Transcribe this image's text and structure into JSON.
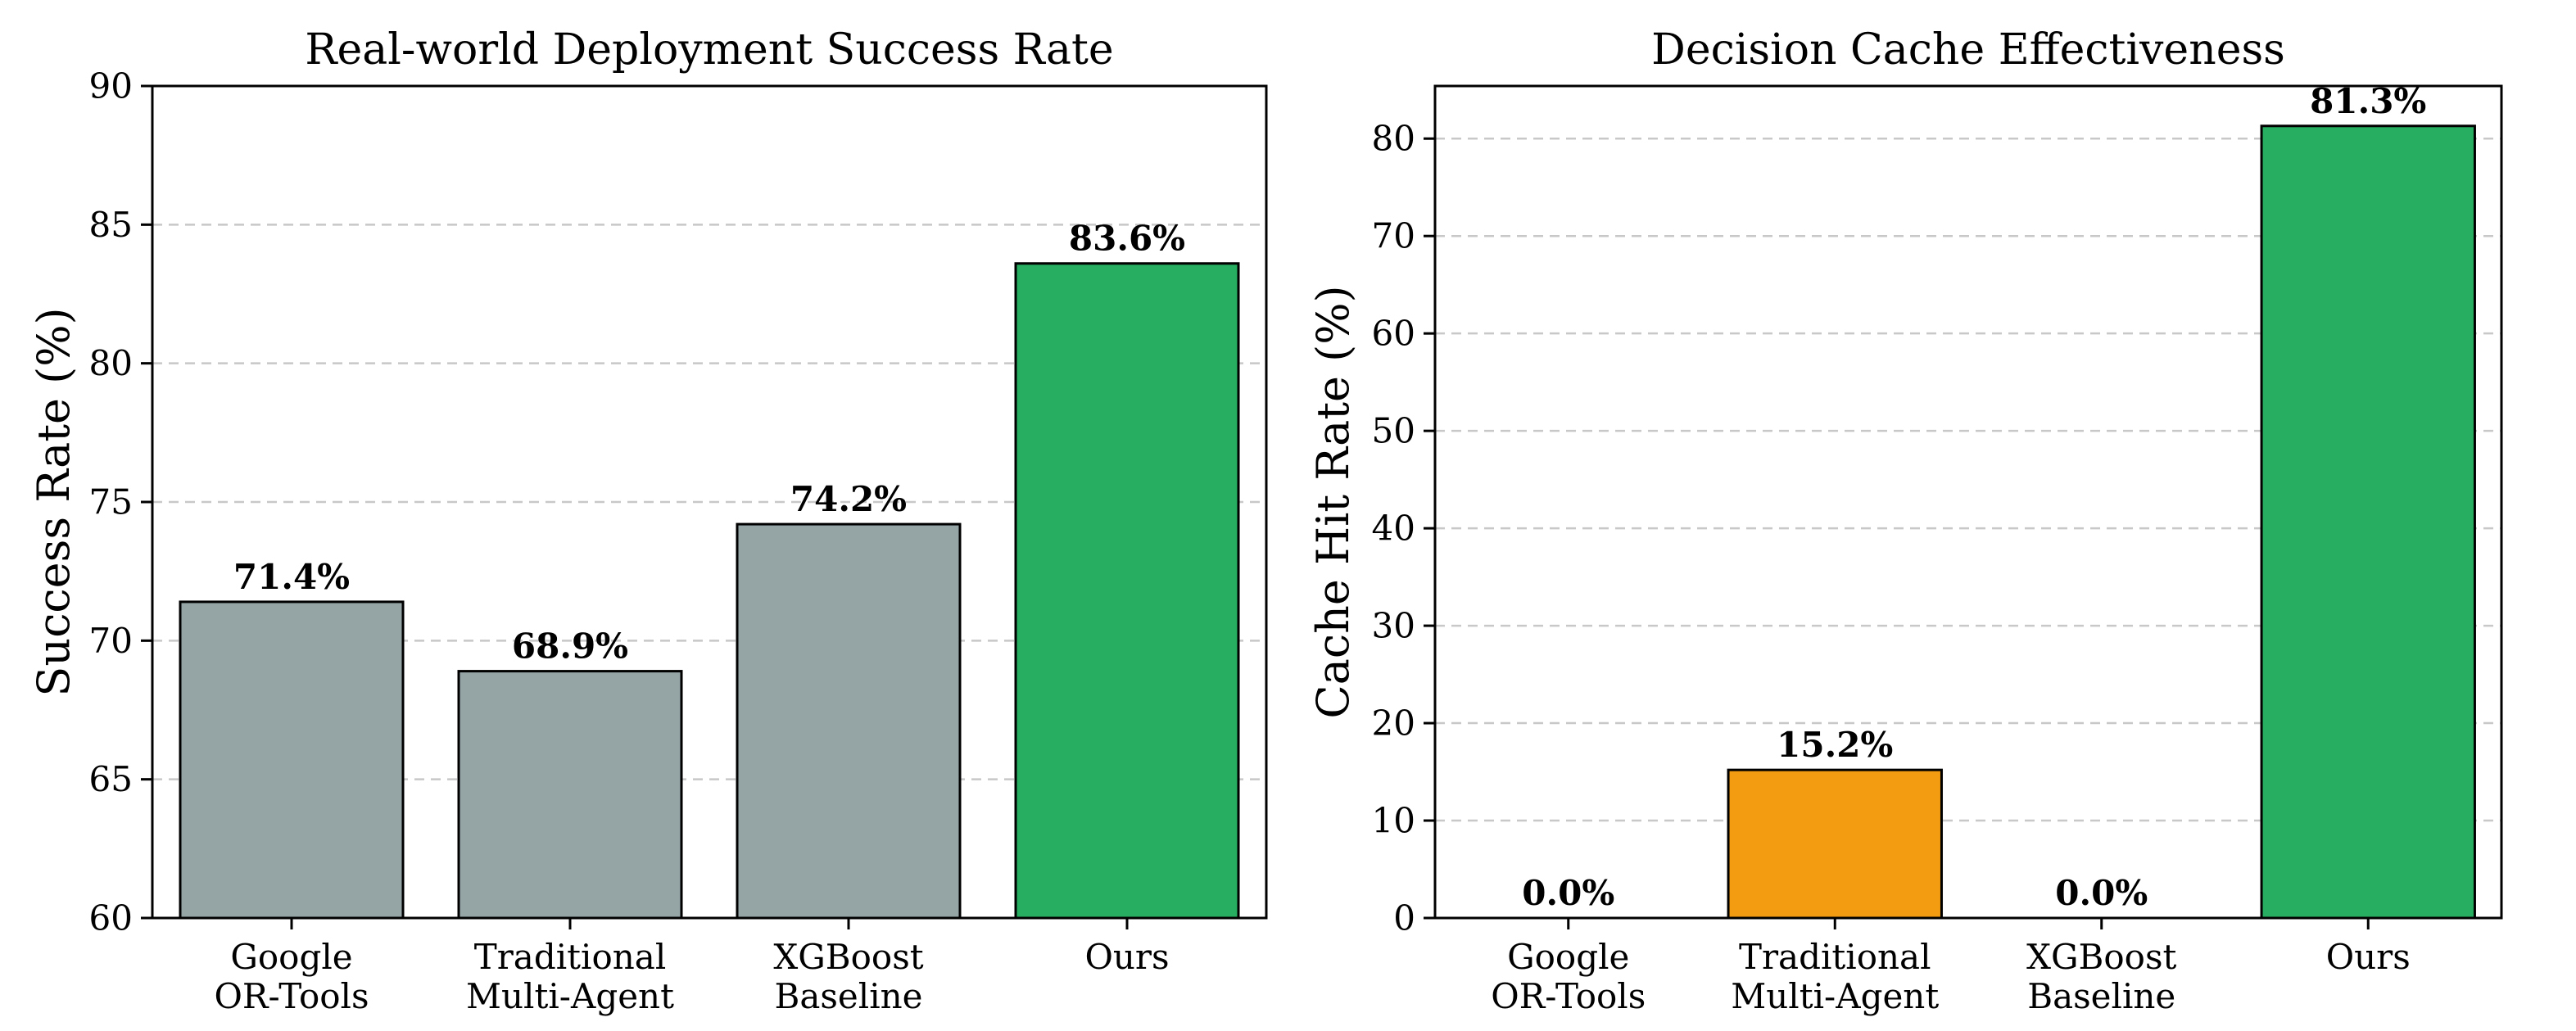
{
  "chart_data": [
    {
      "type": "bar",
      "title": "Real-world Deployment Success Rate",
      "xlabel": "",
      "ylabel": "Success Rate (%)",
      "ylim": [
        60,
        90
      ],
      "yticks": [
        60,
        65,
        70,
        75,
        80,
        85,
        90
      ],
      "grid": true,
      "categories": [
        [
          "Google",
          "OR-Tools"
        ],
        [
          "Traditional",
          "Multi-Agent"
        ],
        [
          "XGBoost",
          "Baseline"
        ],
        [
          "Ours"
        ]
      ],
      "values": [
        71.4,
        68.9,
        74.2,
        83.6
      ],
      "value_labels": [
        "71.4%",
        "68.9%",
        "74.2%",
        "83.6%"
      ],
      "colors": [
        "#95a5a6",
        "#95a5a6",
        "#95a5a6",
        "#27ae60"
      ]
    },
    {
      "type": "bar",
      "title": "Decision Cache Effectiveness",
      "xlabel": "",
      "ylabel": "Cache Hit Rate (%)",
      "ylim": [
        0,
        85.4
      ],
      "yticks": [
        0,
        10,
        20,
        30,
        40,
        50,
        60,
        70,
        80
      ],
      "grid": true,
      "categories": [
        [
          "Google",
          "OR-Tools"
        ],
        [
          "Traditional",
          "Multi-Agent"
        ],
        [
          "XGBoost",
          "Baseline"
        ],
        [
          "Ours"
        ]
      ],
      "values": [
        0.0,
        15.2,
        0.0,
        81.3
      ],
      "value_labels": [
        "0.0%",
        "15.2%",
        "0.0%",
        "81.3%"
      ],
      "colors": [
        "#95a5a6",
        "#f39c12",
        "#95a5a6",
        "#27ae60"
      ]
    }
  ]
}
